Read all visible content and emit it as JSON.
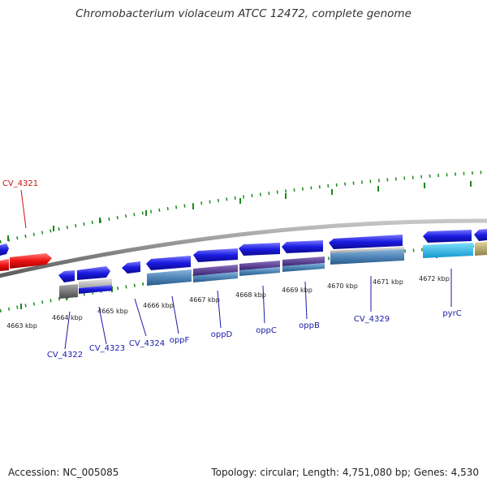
{
  "title": "Chromobacterium violaceum ATCC 12472, complete genome",
  "footer": {
    "accession": "Accession: NC_005085",
    "summary": "Topology: circular; Length: 4,751,080 bp; Genes: 4,530"
  },
  "colors": {
    "backbone": "#8a8a8a",
    "tick": "#1a8a1a",
    "gene_label": "#1a1aa8",
    "highlight_label": "#cc1111",
    "forward_gene": "#1a1ae0",
    "highlight_gene": "#ee1111",
    "operon_blue": "#4f87b8",
    "operon_purple": "#5a3f8c",
    "cyan_gene": "#22bbee",
    "olive_gene": "#b8a866",
    "gray_gene": "#6e6e6e"
  },
  "scale_labels": [
    "4663 kbp",
    "4664 kbp",
    "4665 kbp",
    "4666 kbp",
    "4667 kbp",
    "4668 kbp",
    "4669 kbp",
    "4670 kbp",
    "4671 kbp",
    "4672 kbp"
  ],
  "gene_labels": [
    {
      "id": "CV_4321",
      "highlight": true
    },
    {
      "id": "CV_4322",
      "highlight": false
    },
    {
      "id": "CV_4323",
      "highlight": false
    },
    {
      "id": "CV_4324",
      "highlight": false
    },
    {
      "id": "oppF",
      "highlight": false
    },
    {
      "id": "oppD",
      "highlight": false
    },
    {
      "id": "oppC",
      "highlight": false
    },
    {
      "id": "oppB",
      "highlight": false
    },
    {
      "id": "CV_4329",
      "highlight": false
    },
    {
      "id": "pyrC",
      "highlight": false
    }
  ]
}
